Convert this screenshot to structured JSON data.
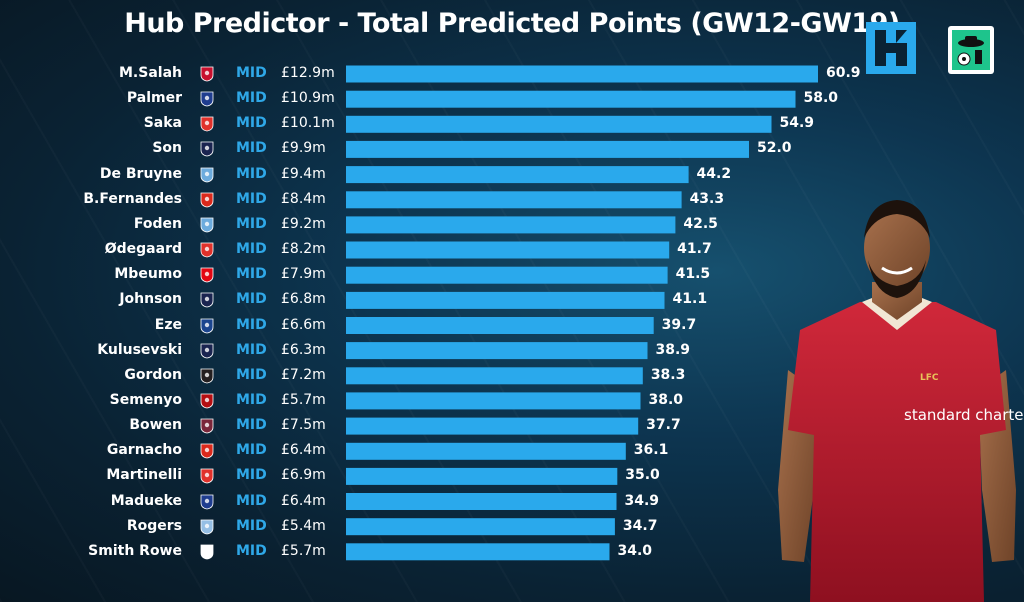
{
  "header": {
    "title": "Hub Predictor - Total Predicted Points (GW12-GW19)",
    "brand_logo_icon": "hub-h-logo-icon",
    "badge_icon": "football-badge-icon"
  },
  "colors": {
    "bar": "#2aa9ec",
    "position_text": "#2fa8e8",
    "background": "#0d3550",
    "arsenal": "#e0312b",
    "liverpool": "#c8102e",
    "chelsea": "#1f3d8f",
    "tottenham": "#1a2450",
    "man_city": "#6cabdd",
    "man_utd": "#da291c",
    "brentford": "#e30613",
    "crystal_palace": "#1b458f",
    "newcastle": "#241f20",
    "bournemouth": "#b50e12",
    "west_ham": "#7a263a",
    "aston_villa": "#95bfe5",
    "fulham": "#ffffff"
  },
  "chart_data": {
    "type": "bar",
    "orientation": "horizontal",
    "title": "Hub Predictor - Total Predicted Points (GW12-GW19)",
    "xlim": [
      0,
      70
    ],
    "grid": false,
    "categories": [
      "M.Salah",
      "Palmer",
      "Saka",
      "Son",
      "De Bruyne",
      "B.Fernandes",
      "Foden",
      "Ødegaard",
      "Mbeumo",
      "Johnson",
      "Eze",
      "Kulusevski",
      "Gordon",
      "Semenyo",
      "Bowen",
      "Garnacho",
      "Martinelli",
      "Madueke",
      "Rogers",
      "Smith Rowe"
    ],
    "values": [
      60.9,
      58.0,
      54.9,
      52.0,
      44.2,
      43.3,
      42.5,
      41.7,
      41.5,
      41.1,
      39.7,
      38.9,
      38.3,
      38.0,
      37.7,
      36.1,
      35.0,
      34.9,
      34.7,
      34.0
    ],
    "value_labels": [
      "60.9",
      "58.0",
      "54.9",
      "52.0",
      "44.2",
      "43.3",
      "42.5",
      "41.7",
      "41.5",
      "41.1",
      "39.7",
      "38.9",
      "38.3",
      "38.0",
      "37.7",
      "36.1",
      "35.0",
      "34.9",
      "34.7",
      "34.0"
    ],
    "positions": [
      "MID",
      "MID",
      "MID",
      "MID",
      "MID",
      "MID",
      "MID",
      "MID",
      "MID",
      "MID",
      "MID",
      "MID",
      "MID",
      "MID",
      "MID",
      "MID",
      "MID",
      "MID",
      "MID",
      "MID"
    ],
    "prices": [
      "£12.9m",
      "£10.9m",
      "£10.1m",
      "£9.9m",
      "£9.4m",
      "£8.4m",
      "£9.2m",
      "£8.2m",
      "£7.9m",
      "£6.8m",
      "£6.6m",
      "£6.3m",
      "£7.2m",
      "£5.7m",
      "£7.5m",
      "£6.4m",
      "£6.9m",
      "£6.4m",
      "£5.4m",
      "£5.7m"
    ],
    "clubs": [
      "liverpool",
      "chelsea",
      "arsenal",
      "tottenham",
      "man_city",
      "man_utd",
      "man_city",
      "arsenal",
      "brentford",
      "tottenham",
      "crystal_palace",
      "tottenham",
      "newcastle",
      "bournemouth",
      "west_ham",
      "man_utd",
      "arsenal",
      "chelsea",
      "aston_villa",
      "fulham"
    ]
  },
  "player_image": {
    "icon": "player-photo-icon",
    "sponsor": "standard chartered",
    "crest_text": "LFC"
  }
}
